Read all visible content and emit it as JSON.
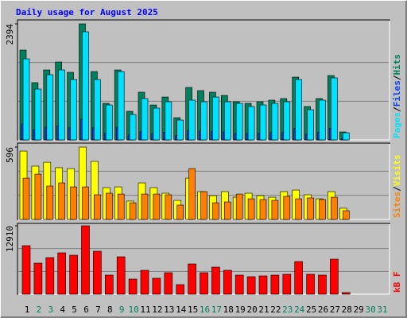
{
  "title": "Daily usage for August 2025",
  "legend_separator": "/",
  "chart_data": [
    {
      "type": "bar",
      "ylim": [
        0,
        2394
      ],
      "yticks": [
        2394
      ],
      "grid": true,
      "series": [
        {
          "name": "Hits",
          "color": "#00805c",
          "values": [
            1853,
            1181,
            1443,
            1607,
            1394,
            2394,
            1410,
            754,
            1443,
            590,
            984,
            721,
            885,
            459,
            1082,
            1017,
            984,
            918,
            787,
            754,
            787,
            820,
            853,
            1295,
            689,
            853,
            1328,
            164,
            0,
            0,
            0
          ]
        },
        {
          "name": "Files",
          "color": "#0040ff",
          "values": [
            330,
            210,
            260,
            290,
            250,
            430,
            250,
            135,
            260,
            105,
            175,
            130,
            160,
            85,
            195,
            185,
            175,
            165,
            140,
            135,
            140,
            150,
            155,
            235,
            125,
            155,
            240,
            30,
            0,
            0,
            0
          ]
        },
        {
          "name": "Pages",
          "color": "#00e0ff",
          "values": [
            1672,
            1049,
            1345,
            1443,
            1246,
            2230,
            1246,
            721,
            1410,
            525,
            853,
            656,
            787,
            410,
            820,
            787,
            885,
            787,
            754,
            689,
            721,
            754,
            787,
            1246,
            623,
            820,
            1279,
            148,
            0,
            0,
            0
          ]
        }
      ]
    },
    {
      "type": "bar",
      "ylim": [
        0,
        596
      ],
      "yticks": [
        596
      ],
      "grid": true,
      "series": [
        {
          "name": "Visits",
          "color": "#ffff00",
          "values": [
            563,
            439,
            471,
            426,
            419,
            596,
            478,
            262,
            268,
            151,
            301,
            262,
            216,
            157,
            340,
            229,
            196,
            229,
            183,
            216,
            196,
            183,
            229,
            242,
            203,
            170,
            229,
            92,
            0,
            0,
            0
          ]
        },
        {
          "name": "Sites",
          "color": "#ff8000",
          "values": [
            340,
            373,
            275,
            301,
            268,
            268,
            203,
            216,
            209,
            137,
            209,
            209,
            203,
            118,
            419,
            229,
            137,
            144,
            209,
            170,
            164,
            157,
            190,
            170,
            177,
            164,
            183,
            72,
            0,
            0,
            0
          ]
        }
      ]
    },
    {
      "type": "bar",
      "ylim": [
        0,
        12910
      ],
      "yticks": [
        12910
      ],
      "grid": true,
      "categories": [
        "1",
        "2",
        "3",
        "4",
        "5",
        "6",
        "7",
        "8",
        "9",
        "10",
        "11",
        "12",
        "13",
        "14",
        "15",
        "16",
        "17",
        "18",
        "19",
        "20",
        "21",
        "22",
        "23",
        "24",
        "25",
        "26",
        "27",
        "28",
        "29",
        "30",
        "31"
      ],
      "category_colors": [
        "#000000",
        "#00805c",
        "#00805c",
        "#000000",
        "#000000",
        "#000000",
        "#000000",
        "#000000",
        "#00805c",
        "#00805c",
        "#000000",
        "#000000",
        "#000000",
        "#000000",
        "#000000",
        "#00805c",
        "#00805c",
        "#000000",
        "#000000",
        "#000000",
        "#000000",
        "#000000",
        "#00805c",
        "#00805c",
        "#000000",
        "#000000",
        "#000000",
        "#000000",
        "#000000",
        "#00805c",
        "#00805c"
      ],
      "series": [
        {
          "name": "kB F",
          "color": "#ff0000",
          "values": [
            9157,
            5855,
            6905,
            7806,
            7356,
            12910,
            8106,
            3603,
            7055,
            2852,
            4503,
            3002,
            4053,
            1801,
            5704,
            4053,
            5104,
            4503,
            3603,
            3303,
            3453,
            3603,
            3753,
            6155,
            3753,
            3603,
            6605,
            300,
            0,
            0,
            0
          ]
        }
      ]
    }
  ]
}
